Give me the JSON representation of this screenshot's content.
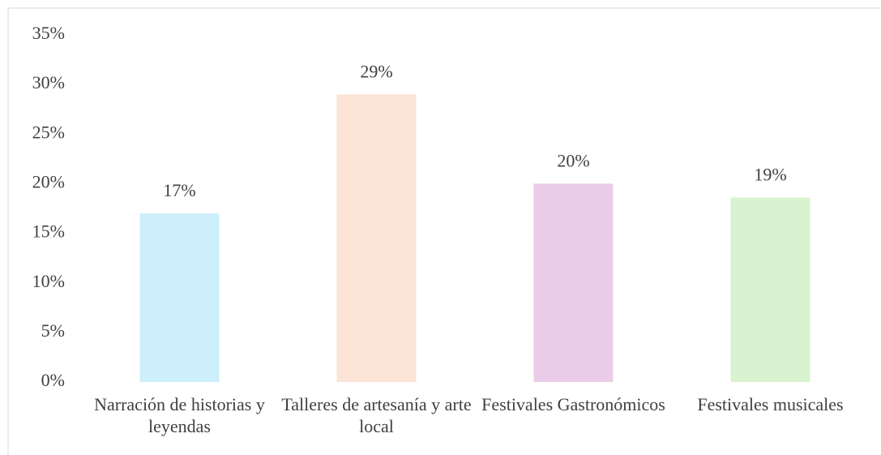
{
  "chart_data": {
    "type": "bar",
    "categories": [
      "Narración de historias y leyendas",
      "Talleres de artesanía y arte local",
      "Festivales Gastronómicos",
      "Festivales musicales"
    ],
    "values": [
      17,
      29,
      20,
      18.6
    ],
    "value_labels": [
      "17%",
      "29%",
      "20%",
      "19%"
    ],
    "colors": [
      "#cdeefb",
      "#fce4d6",
      "#ebcce8",
      "#d9f2d0"
    ],
    "ylim": [
      0,
      35
    ],
    "yticks": [
      {
        "value": 0,
        "label": "0%"
      },
      {
        "value": 5,
        "label": "5%"
      },
      {
        "value": 10,
        "label": "10%"
      },
      {
        "value": 15,
        "label": "15%"
      },
      {
        "value": 20,
        "label": "20%"
      },
      {
        "value": 25,
        "label": "25%"
      },
      {
        "value": 30,
        "label": "30%"
      },
      {
        "value": 35,
        "label": "35%"
      }
    ],
    "grid": false
  }
}
